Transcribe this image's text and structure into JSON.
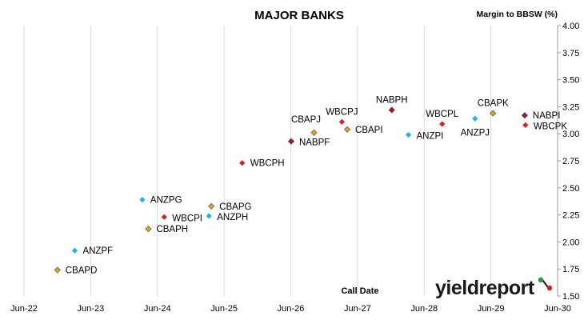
{
  "chart_data": {
    "type": "scatter",
    "title": "MAJOR BANKS",
    "xlabel": "Call Date",
    "ylabel": "Margin to BBSW (%)",
    "x_ticks": [
      "Jun-22",
      "Jun-23",
      "Jun-24",
      "Jun-25",
      "Jun-26",
      "Jun-27",
      "Jun-28",
      "Jun-29",
      "Jun-30"
    ],
    "y_ticks": [
      "1.50",
      "1.75",
      "2.00",
      "2.25",
      "2.50",
      "2.75",
      "3.00",
      "3.25",
      "3.50",
      "3.75",
      "4.00"
    ],
    "xlim": [
      "Jun-22",
      "Jun-30"
    ],
    "ylim": [
      1.5,
      4.0
    ],
    "grid": "vertical",
    "legend": "none",
    "colors": {
      "CBA": "#e0a31f",
      "ANZ": "#1fb4e8",
      "WBC": "#e21b23",
      "NAB": "#b5121b"
    },
    "points": [
      {
        "name": "CBAPD",
        "bank": "CBA",
        "x": "2022-12-15",
        "y": 1.74
      },
      {
        "name": "ANZPF",
        "bank": "ANZ",
        "x": "2023-03-20",
        "y": 1.92
      },
      {
        "name": "ANZPG",
        "bank": "ANZ",
        "x": "2024-03-24",
        "y": 2.39
      },
      {
        "name": "CBAPH",
        "bank": "CBA",
        "x": "2024-04-26",
        "y": 2.12
      },
      {
        "name": "WBCPI",
        "bank": "WBC",
        "x": "2024-07-22",
        "y": 2.23
      },
      {
        "name": "ANZPH",
        "bank": "ANZ",
        "x": "2025-03-24",
        "y": 2.24
      },
      {
        "name": "CBAPG",
        "bank": "CBA",
        "x": "2025-04-06",
        "y": 2.33
      },
      {
        "name": "WBCPH",
        "bank": "WBC",
        "x": "2025-09-22",
        "y": 2.73
      },
      {
        "name": "NABPF",
        "bank": "NAB",
        "x": "2026-06-17",
        "y": 2.93
      },
      {
        "name": "CBAPJ",
        "bank": "CBA",
        "x": "2026-10-20",
        "y": 3.01
      },
      {
        "name": "WBCPJ",
        "bank": "WBC",
        "x": "2027-03-22",
        "y": 3.11
      },
      {
        "name": "CBAPI",
        "bank": "CBA",
        "x": "2027-04-20",
        "y": 3.04
      },
      {
        "name": "NABPH",
        "bank": "NAB",
        "x": "2027-12-20",
        "y": 3.22
      },
      {
        "name": "ANZPI",
        "bank": "ANZ",
        "x": "2028-03-20",
        "y": 2.99
      },
      {
        "name": "WBCPL",
        "bank": "WBC",
        "x": "2028-09-21",
        "y": 3.09
      },
      {
        "name": "ANZPJ",
        "bank": "ANZ",
        "x": "2029-03-20",
        "y": 3.14
      },
      {
        "name": "CBAPK",
        "bank": "CBA",
        "x": "2029-06-26",
        "y": 3.19
      },
      {
        "name": "NABPI",
        "bank": "NAB",
        "x": "2029-12-17",
        "y": 3.17
      },
      {
        "name": "WBCPK",
        "bank": "WBC",
        "x": "2029-12-21",
        "y": 3.08
      }
    ]
  },
  "brand": {
    "text": "yieldreport",
    "symbol": "%",
    "text_color": "#1a1a1a",
    "symbol_color_top": "#2e9a3a",
    "symbol_color_bottom": "#d11f26"
  }
}
